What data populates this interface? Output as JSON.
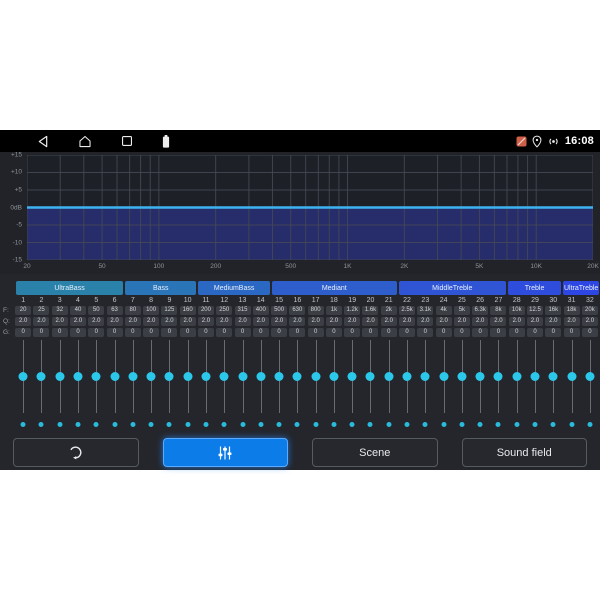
{
  "status_bar": {
    "time": "16:08",
    "left_icons": [
      "back",
      "home",
      "recents",
      "battery-notification"
    ],
    "right_icons": [
      "network-off",
      "location",
      "hotspot"
    ]
  },
  "graph": {
    "line_color": "#3fb3f2",
    "fill_color": "#272c6a",
    "grid_color": "#454a54",
    "y_ticks": [
      {
        "label": "+15",
        "db": 15
      },
      {
        "label": "+10",
        "db": 10
      },
      {
        "label": "+5",
        "db": 5
      },
      {
        "label": "0dB",
        "db": 0
      },
      {
        "label": "-5",
        "db": -5
      },
      {
        "label": "-10",
        "db": -10
      },
      {
        "label": "-15",
        "db": -15
      }
    ],
    "x_ticks": [
      {
        "label": "20",
        "hz": 20
      },
      {
        "label": "50",
        "hz": 50
      },
      {
        "label": "100",
        "hz": 100
      },
      {
        "label": "200",
        "hz": 200
      },
      {
        "label": "500",
        "hz": 500
      },
      {
        "label": "1K",
        "hz": 1000
      },
      {
        "label": "2K",
        "hz": 2000
      },
      {
        "label": "5K",
        "hz": 5000
      },
      {
        "label": "10K",
        "hz": 10000
      },
      {
        "label": "20K",
        "hz": 20000
      }
    ]
  },
  "chart_data": {
    "type": "line",
    "title": "Equalizer frequency response (flat at 0 dB)",
    "x_scale": "log",
    "x_range_hz": [
      20,
      20000
    ],
    "ylim_db": [
      -15,
      15
    ],
    "x_tick_labels": [
      "20",
      "50",
      "100",
      "200",
      "500",
      "1K",
      "2K",
      "5K",
      "10K",
      "20K"
    ],
    "y_tick_labels": [
      "+15",
      "+10",
      "+5",
      "0dB",
      "-5",
      "-10",
      "-15"
    ],
    "series": [
      {
        "name": "response_db",
        "points": [
          [
            20,
            0
          ],
          [
            20000,
            0
          ]
        ]
      }
    ],
    "area_fill": "region below 0dB line filled navy blue",
    "grid": true
  },
  "groups": [
    {
      "label": "UltraBass",
      "bands": 6,
      "color": "#2a82aa"
    },
    {
      "label": "Bass",
      "bands": 4,
      "color": "#2a74b8"
    },
    {
      "label": "MediumBass",
      "bands": 4,
      "color": "#2b68c3"
    },
    {
      "label": "Mediant",
      "bands": 7,
      "color": "#2e5ecb"
    },
    {
      "label": "MiddleTreble",
      "bands": 6,
      "color": "#2f55d5"
    },
    {
      "label": "Treble",
      "bands": 3,
      "color": "#2e4ddd"
    },
    {
      "label": "UltraTreble",
      "bands": 2,
      "color": "#2e47e4"
    }
  ],
  "bands": {
    "row_labels": {
      "f": "F:",
      "q": "Q:",
      "g": "G:"
    },
    "numbers": [
      "1",
      "2",
      "3",
      "4",
      "5",
      "6",
      "7",
      "8",
      "9",
      "10",
      "11",
      "12",
      "13",
      "14",
      "15",
      "16",
      "17",
      "18",
      "19",
      "20",
      "21",
      "22",
      "23",
      "24",
      "25",
      "26",
      "27",
      "28",
      "29",
      "30",
      "31",
      "32"
    ],
    "f": [
      "20",
      "25",
      "32",
      "40",
      "50",
      "63",
      "80",
      "100",
      "125",
      "160",
      "200",
      "250",
      "315",
      "400",
      "500",
      "630",
      "800",
      "1k",
      "1.2k",
      "1.6k",
      "2k",
      "2.5k",
      "3.1k",
      "4k",
      "5k",
      "6.3k",
      "8k",
      "10k",
      "12.5",
      "16k",
      "18k",
      "20k"
    ],
    "q": [
      "2.0",
      "2.0",
      "2.0",
      "2.0",
      "2.0",
      "2.0",
      "2.0",
      "2.0",
      "2.0",
      "2.0",
      "2.0",
      "2.0",
      "2.0",
      "2.0",
      "2.0",
      "2.0",
      "2.0",
      "2.0",
      "2.0",
      "2.0",
      "2.0",
      "2.0",
      "2.0",
      "2.0",
      "2.0",
      "2.0",
      "2.0",
      "2.0",
      "2.0",
      "2.0",
      "2.0",
      "2.0"
    ],
    "g": [
      "0",
      "0",
      "0",
      "0",
      "0",
      "0",
      "0",
      "0",
      "0",
      "0",
      "0",
      "0",
      "0",
      "0",
      "0",
      "0",
      "0",
      "0",
      "0",
      "0",
      "0",
      "0",
      "0",
      "0",
      "0",
      "0",
      "0",
      "0",
      "0",
      "0",
      "0",
      "0"
    ],
    "slider_gain_db": 0,
    "slider_color": "#2cc8ea"
  },
  "buttons": {
    "reset": {
      "icon": "reset-icon"
    },
    "eq": {
      "icon": "eq-sliders-icon",
      "active": true,
      "accent": "#0b7ce8"
    },
    "scene": {
      "label": "Scene"
    },
    "sound_field": {
      "label": "Sound field"
    }
  }
}
